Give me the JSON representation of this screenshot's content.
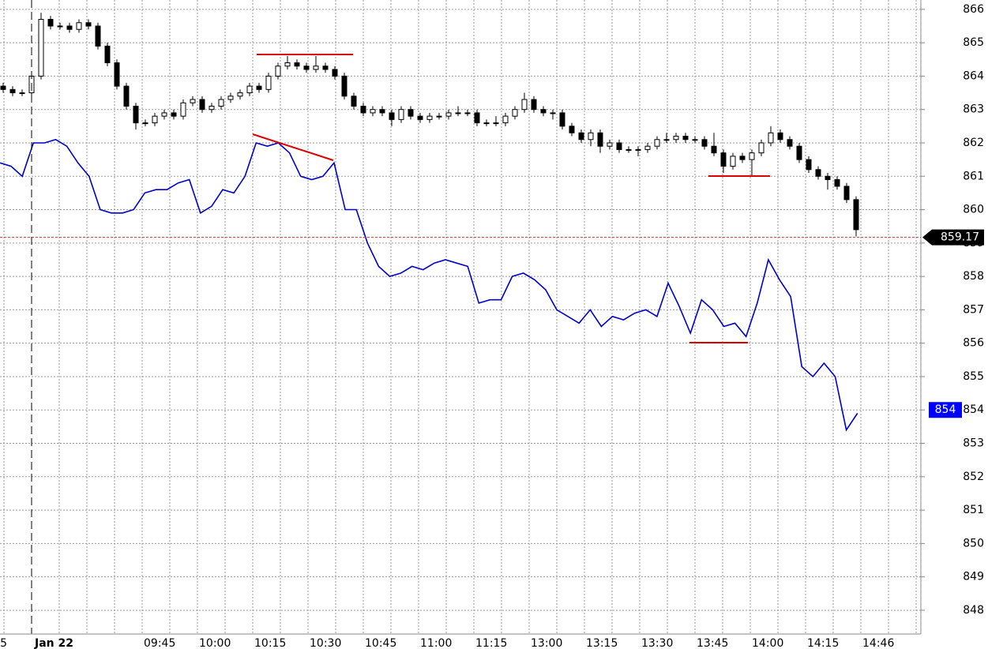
{
  "chart_data": {
    "type": "candlestick",
    "ylim": [
      847.36,
      866.28
    ],
    "yticks": [
      848,
      849,
      850,
      851,
      852,
      853,
      854,
      855,
      856,
      857,
      858,
      859,
      860,
      861,
      862,
      863,
      864,
      865,
      866
    ],
    "x_labels": [
      "5",
      "Jan 22",
      "09:45",
      "10:00",
      "10:15",
      "10:30",
      "10:45",
      "11:00",
      "11:15",
      "13:00",
      "13:15",
      "13:30",
      "13:45",
      "14:00",
      "14:15",
      "14:46"
    ],
    "grid": true,
    "candles": {
      "color": "#000000",
      "open": [
        863.7,
        863.6,
        863.5,
        863.5,
        864.0,
        865.7,
        865.5,
        865.5,
        865.4,
        865.6,
        865.5,
        864.9,
        864.4,
        863.7,
        863.1,
        862.6,
        862.6,
        862.8,
        862.9,
        862.8,
        863.2,
        863.3,
        863.0,
        863.1,
        863.3,
        863.4,
        863.5,
        863.7,
        863.6,
        864.0,
        864.3,
        864.4,
        864.3,
        864.2,
        864.3,
        864.2,
        864.0,
        863.4,
        863.1,
        862.9,
        863.0,
        862.9,
        862.7,
        863.0,
        862.8,
        862.7,
        862.8,
        862.8,
        862.9,
        862.9,
        862.9,
        862.6,
        862.6,
        862.6,
        862.8,
        863.0,
        863.3,
        863.0,
        862.9,
        862.9,
        862.5,
        862.3,
        862.1,
        862.3,
        861.9,
        862.0,
        861.8,
        861.8,
        861.8,
        861.9,
        862.1,
        862.1,
        862.2,
        862.1,
        862.1,
        861.9,
        861.7,
        861.3,
        861.6,
        861.5,
        861.7,
        862.0,
        862.3,
        862.1,
        861.9,
        861.5,
        861.2,
        861.0,
        860.9,
        860.7,
        860.3
      ],
      "high": [
        863.8,
        863.7,
        863.6,
        864.1,
        865.9,
        865.8,
        865.6,
        865.6,
        865.7,
        865.7,
        865.6,
        865.0,
        864.5,
        863.8,
        863.2,
        862.7,
        862.9,
        863.0,
        863.0,
        863.3,
        863.4,
        863.4,
        863.2,
        863.4,
        863.5,
        863.6,
        863.8,
        863.8,
        864.1,
        864.4,
        864.6,
        864.5,
        864.4,
        864.6,
        864.4,
        864.3,
        864.1,
        863.5,
        863.2,
        863.1,
        863.1,
        863.0,
        863.1,
        863.1,
        862.9,
        862.9,
        862.9,
        863.0,
        863.1,
        863.0,
        863.0,
        862.7,
        862.8,
        862.9,
        863.1,
        863.5,
        863.4,
        863.1,
        863.0,
        863.0,
        862.6,
        862.4,
        862.4,
        862.4,
        862.1,
        862.1,
        861.9,
        861.9,
        862.0,
        862.2,
        862.3,
        862.3,
        862.3,
        862.2,
        862.2,
        862.3,
        861.8,
        861.7,
        861.7,
        861.8,
        862.1,
        862.5,
        862.4,
        862.2,
        862.0,
        861.6,
        861.3,
        861.1,
        861.0,
        860.8,
        860.4
      ],
      "low": [
        863.5,
        863.4,
        863.4,
        863.4,
        863.9,
        865.4,
        865.4,
        865.3,
        865.3,
        865.4,
        864.8,
        864.3,
        863.6,
        863.0,
        862.4,
        862.5,
        862.5,
        862.7,
        862.7,
        862.7,
        863.1,
        862.9,
        862.9,
        863.0,
        863.2,
        863.3,
        863.4,
        863.5,
        863.5,
        863.9,
        864.2,
        864.2,
        864.1,
        864.1,
        864.1,
        863.9,
        863.3,
        863.0,
        862.8,
        862.8,
        862.8,
        862.5,
        862.6,
        862.7,
        862.6,
        862.6,
        862.7,
        862.7,
        862.8,
        862.8,
        862.5,
        862.5,
        862.5,
        862.5,
        862.7,
        862.9,
        862.9,
        862.8,
        862.7,
        862.4,
        862.2,
        862.0,
        861.9,
        861.7,
        861.8,
        861.7,
        861.7,
        861.6,
        861.7,
        861.8,
        862.0,
        862.0,
        862.0,
        862.0,
        861.8,
        861.6,
        861.1,
        861.2,
        861.4,
        861.0,
        861.6,
        861.9,
        862.0,
        861.8,
        861.4,
        861.1,
        860.9,
        860.6,
        860.6,
        860.2,
        859.2
      ],
      "close": [
        863.6,
        863.5,
        863.5,
        864.0,
        865.7,
        865.5,
        865.5,
        865.4,
        865.6,
        865.5,
        864.9,
        864.4,
        863.7,
        863.1,
        862.6,
        862.6,
        862.8,
        862.9,
        862.8,
        863.2,
        863.3,
        863.0,
        863.1,
        863.3,
        863.4,
        863.5,
        863.7,
        863.6,
        864.0,
        864.3,
        864.4,
        864.3,
        864.2,
        864.3,
        864.2,
        864.0,
        863.4,
        863.1,
        862.9,
        863.0,
        862.9,
        862.7,
        863.0,
        862.8,
        862.7,
        862.8,
        862.8,
        862.9,
        862.9,
        862.9,
        862.6,
        862.6,
        862.6,
        862.8,
        863.0,
        863.3,
        863.0,
        862.9,
        862.9,
        862.5,
        862.3,
        862.1,
        862.3,
        861.9,
        862.0,
        861.8,
        861.8,
        861.8,
        861.9,
        862.1,
        862.1,
        862.2,
        862.1,
        862.1,
        861.9,
        861.7,
        861.3,
        861.6,
        861.5,
        861.7,
        862.0,
        862.3,
        862.1,
        861.9,
        861.5,
        861.2,
        861.0,
        860.9,
        860.7,
        860.3,
        859.4
      ]
    },
    "line": {
      "color": "#0000cc",
      "values": [
        861.4,
        861.3,
        861.0,
        862.0,
        862.0,
        862.1,
        861.9,
        861.4,
        861.0,
        860.0,
        859.9,
        859.9,
        860.0,
        860.5,
        860.6,
        860.6,
        860.8,
        860.9,
        859.9,
        860.1,
        860.6,
        860.5,
        861.0,
        862.0,
        861.9,
        862.0,
        861.7,
        861.0,
        860.9,
        861.0,
        861.4,
        860.0,
        860.0,
        859.0,
        858.3,
        858.0,
        858.1,
        858.3,
        858.2,
        858.4,
        858.5,
        858.4,
        858.3,
        857.2,
        857.3,
        857.3,
        858.0,
        858.1,
        857.9,
        857.6,
        857.0,
        856.8,
        856.6,
        857.0,
        856.5,
        856.8,
        856.7,
        856.9,
        857.0,
        856.8,
        857.8,
        857.1,
        856.3,
        857.3,
        857.0,
        856.5,
        856.6,
        856.2,
        857.2,
        858.5,
        857.9,
        857.4,
        855.3,
        855.0,
        855.4,
        855.0,
        853.4,
        853.9
      ]
    },
    "price_labels": [
      {
        "value": 859.17,
        "color": "#000000"
      },
      {
        "value": 854,
        "color": "#0000ff"
      }
    ]
  }
}
